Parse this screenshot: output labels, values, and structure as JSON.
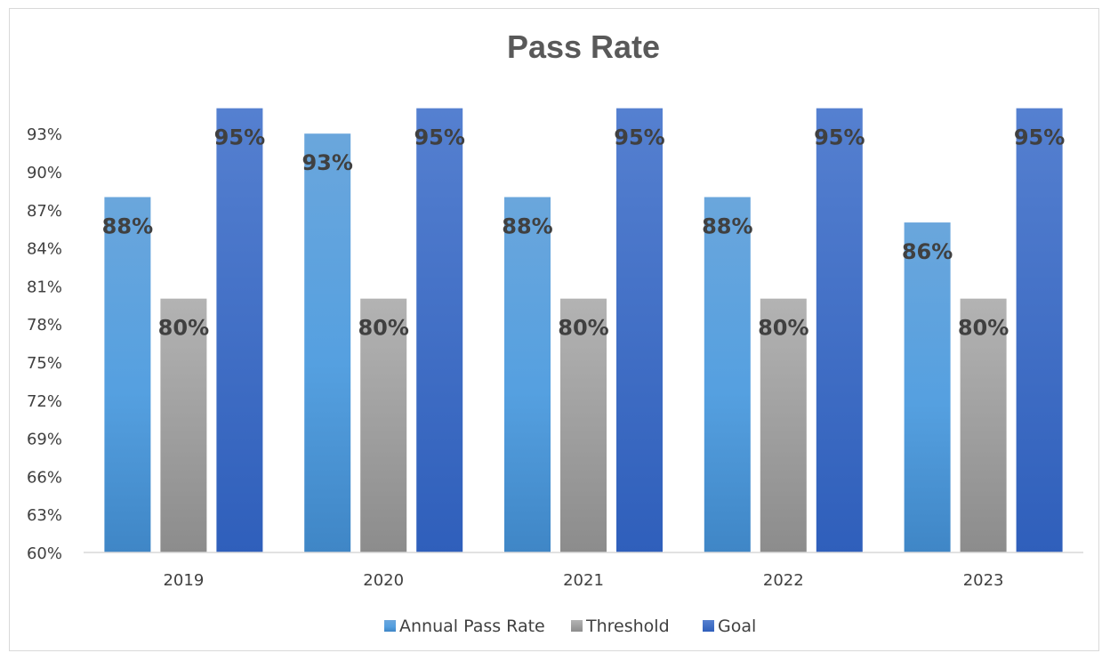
{
  "chart_data": {
    "type": "bar",
    "title": "Pass Rate",
    "xlabel": "",
    "ylabel": "",
    "categories": [
      "2019",
      "2020",
      "2021",
      "2022",
      "2023"
    ],
    "series": [
      {
        "name": "Annual Pass Rate",
        "values": [
          88,
          93,
          88,
          88,
          86
        ],
        "color": "#5b9bd5"
      },
      {
        "name": "Threshold",
        "values": [
          80,
          80,
          80,
          80,
          80
        ],
        "color": "#a5a5a5"
      },
      {
        "name": "Goal",
        "values": [
          95,
          95,
          95,
          95,
          95
        ],
        "color": "#4472c4"
      }
    ],
    "ylim": [
      60,
      95
    ],
    "yticks": [
      60,
      63,
      66,
      69,
      72,
      75,
      78,
      81,
      84,
      87,
      90,
      93
    ],
    "ytick_labels": [
      "60%",
      "63%",
      "66%",
      "69%",
      "72%",
      "75%",
      "78%",
      "81%",
      "84%",
      "87%",
      "90%",
      "93%"
    ],
    "data_labels": [
      [
        "88%",
        "93%",
        "88%",
        "88%",
        "86%"
      ],
      [
        "80%",
        "80%",
        "80%",
        "80%",
        "80%"
      ],
      [
        "95%",
        "95%",
        "95%",
        "95%",
        "95%"
      ]
    ],
    "grid": false,
    "legend": "bottom"
  }
}
